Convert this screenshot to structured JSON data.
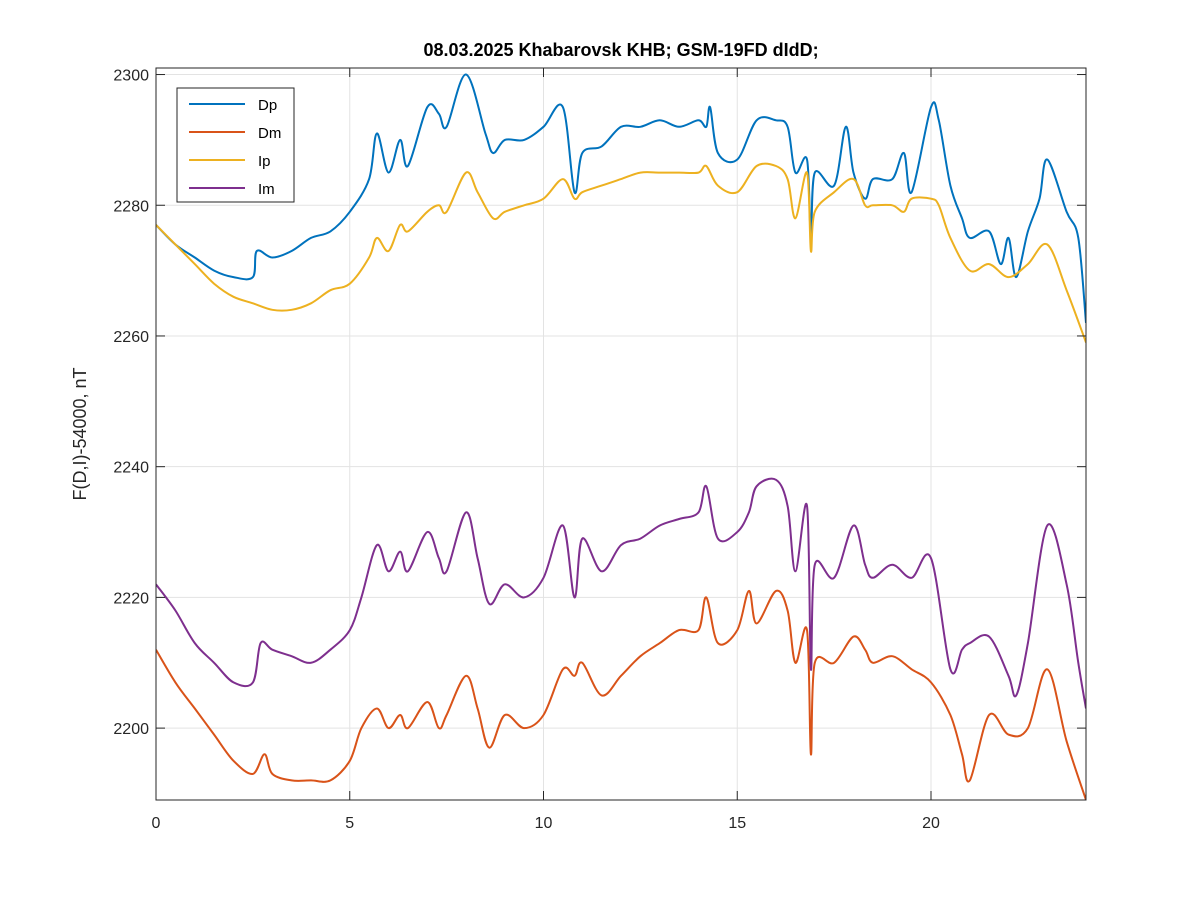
{
  "chart_data": {
    "type": "line",
    "title": "08.03.2025  Khabarovsk KHB; GSM-19FD dIdD;",
    "xlabel": "",
    "ylabel": "F(D,I)-54000, nT",
    "xlim": [
      0,
      24
    ],
    "ylim": [
      2189,
      2301
    ],
    "xticks": [
      0,
      5,
      10,
      15,
      20
    ],
    "yticks": [
      2200,
      2220,
      2240,
      2260,
      2280,
      2300
    ],
    "grid": true,
    "legend_position": "top-left",
    "series": [
      {
        "name": "Dp",
        "color": "#0072BD",
        "x": [
          0,
          0.5,
          1,
          1.5,
          2,
          2.5,
          2.6,
          3,
          3.5,
          4,
          4.5,
          5,
          5.5,
          5.7,
          6,
          6.3,
          6.5,
          7,
          7.3,
          7.5,
          8,
          8.5,
          8.7,
          9,
          9.5,
          10,
          10.5,
          10.8,
          11,
          11.5,
          12,
          12.5,
          13,
          13.5,
          14,
          14.2,
          14.3,
          14.5,
          15,
          15.5,
          16,
          16.3,
          16.5,
          16.8,
          16.9,
          17,
          17.5,
          17.8,
          18,
          18.3,
          18.5,
          19,
          19.3,
          19.5,
          20,
          20.2,
          20.5,
          20.8,
          21,
          21.5,
          21.8,
          22,
          22.2,
          22.5,
          22.8,
          23,
          23.5,
          23.8,
          24
        ],
        "values": [
          2277,
          2274,
          2272,
          2270,
          2269,
          2269,
          2273,
          2272,
          2273,
          2275,
          2276,
          2279,
          2284,
          2291,
          2285,
          2290,
          2286,
          2295,
          2294,
          2292,
          2300,
          2291,
          2288,
          2290,
          2290,
          2292,
          2295,
          2282,
          2288,
          2289,
          2292,
          2292,
          2293,
          2292,
          2293,
          2292,
          2295,
          2288,
          2287,
          2293,
          2293,
          2292,
          2285,
          2287,
          2275,
          2285,
          2283,
          2292,
          2285,
          2281,
          2284,
          2284,
          2288,
          2282,
          2295,
          2293,
          2283,
          2278,
          2275,
          2276,
          2271,
          2275,
          2269,
          2276,
          2281,
          2287,
          2279,
          2275,
          2262
        ]
      },
      {
        "name": "Dm",
        "color": "#D95319",
        "x": [
          0,
          0.5,
          1,
          1.5,
          2,
          2.5,
          2.8,
          3,
          3.5,
          4,
          4.5,
          5,
          5.3,
          5.7,
          6,
          6.3,
          6.5,
          7,
          7.3,
          7.5,
          8,
          8.3,
          8.6,
          9,
          9.5,
          10,
          10.5,
          10.8,
          11,
          11.5,
          12,
          12.5,
          13,
          13.5,
          14,
          14.2,
          14.5,
          15,
          15.3,
          15.5,
          16,
          16.3,
          16.5,
          16.8,
          16.9,
          17,
          17.5,
          18,
          18.3,
          18.5,
          19,
          19.5,
          20,
          20.5,
          20.8,
          21,
          21.5,
          22,
          22.5,
          23,
          23.5,
          24
        ],
        "values": [
          2212,
          2207,
          2203,
          2199,
          2195,
          2193,
          2196,
          2193,
          2192,
          2192,
          2192,
          2195,
          2200,
          2203,
          2200,
          2202,
          2200,
          2204,
          2200,
          2202,
          2208,
          2203,
          2197,
          2202,
          2200,
          2202,
          2209,
          2208,
          2210,
          2205,
          2208,
          2211,
          2213,
          2215,
          2215,
          2220,
          2213,
          2215,
          2221,
          2216,
          2221,
          2218,
          2210,
          2215,
          2196,
          2210,
          2210,
          2214,
          2212,
          2210,
          2211,
          2209,
          2207,
          2202,
          2196,
          2192,
          2202,
          2199,
          2200,
          2209,
          2198,
          2189
        ]
      },
      {
        "name": "Ip",
        "color": "#EDB120",
        "x": [
          0,
          0.5,
          1,
          1.5,
          2,
          2.5,
          3,
          3.5,
          4,
          4.5,
          5,
          5.5,
          5.7,
          6,
          6.3,
          6.5,
          7,
          7.3,
          7.5,
          8,
          8.3,
          8.7,
          9,
          9.5,
          10,
          10.5,
          10.8,
          11,
          11.5,
          12,
          12.5,
          13,
          13.5,
          14,
          14.2,
          14.5,
          15,
          15.5,
          16,
          16.3,
          16.5,
          16.8,
          16.9,
          17,
          17.5,
          18,
          18.3,
          18.5,
          19,
          19.3,
          19.5,
          20,
          20.2,
          20.5,
          21,
          21.5,
          22,
          22.5,
          23,
          23.5,
          24
        ],
        "values": [
          2277,
          2274,
          2271,
          2268,
          2266,
          2265,
          2264,
          2264,
          2265,
          2267,
          2268,
          2272,
          2275,
          2273,
          2277,
          2276,
          2279,
          2280,
          2279,
          2285,
          2282,
          2278,
          2279,
          2280,
          2281,
          2284,
          2281,
          2282,
          2283,
          2284,
          2285,
          2285,
          2285,
          2285,
          2286,
          2283,
          2282,
          2286,
          2286,
          2284,
          2278,
          2285,
          2273,
          2279,
          2282,
          2284,
          2280,
          2280,
          2280,
          2279,
          2281,
          2281,
          2280,
          2275,
          2270,
          2271,
          2269,
          2271,
          2274,
          2267,
          2259
        ]
      },
      {
        "name": "Im",
        "color": "#7E2F8E",
        "x": [
          0,
          0.5,
          1,
          1.5,
          2,
          2.5,
          2.7,
          3,
          3.5,
          4,
          4.5,
          5,
          5.3,
          5.7,
          6,
          6.3,
          6.5,
          7,
          7.3,
          7.5,
          8,
          8.3,
          8.6,
          9,
          9.5,
          10,
          10.5,
          10.8,
          11,
          11.5,
          12,
          12.5,
          13,
          13.5,
          14,
          14.2,
          14.5,
          15,
          15.3,
          15.5,
          16,
          16.3,
          16.5,
          16.8,
          16.9,
          17,
          17.5,
          18,
          18.3,
          18.5,
          19,
          19.5,
          20,
          20.5,
          20.8,
          21,
          21.5,
          22,
          22.2,
          22.5,
          23,
          23.5,
          23.8,
          24
        ],
        "values": [
          2222,
          2218,
          2213,
          2210,
          2207,
          2207,
          2213,
          2212,
          2211,
          2210,
          2212,
          2215,
          2220,
          2228,
          2224,
          2227,
          2224,
          2230,
          2226,
          2224,
          2233,
          2226,
          2219,
          2222,
          2220,
          2223,
          2231,
          2220,
          2229,
          2224,
          2228,
          2229,
          2231,
          2232,
          2233,
          2237,
          2229,
          2230,
          2233,
          2237,
          2238,
          2234,
          2224,
          2234,
          2209,
          2225,
          2223,
          2231,
          2225,
          2223,
          2225,
          2223,
          2226,
          2209,
          2212,
          2213,
          2214,
          2208,
          2205,
          2213,
          2231,
          2222,
          2210,
          2203
        ]
      }
    ]
  }
}
